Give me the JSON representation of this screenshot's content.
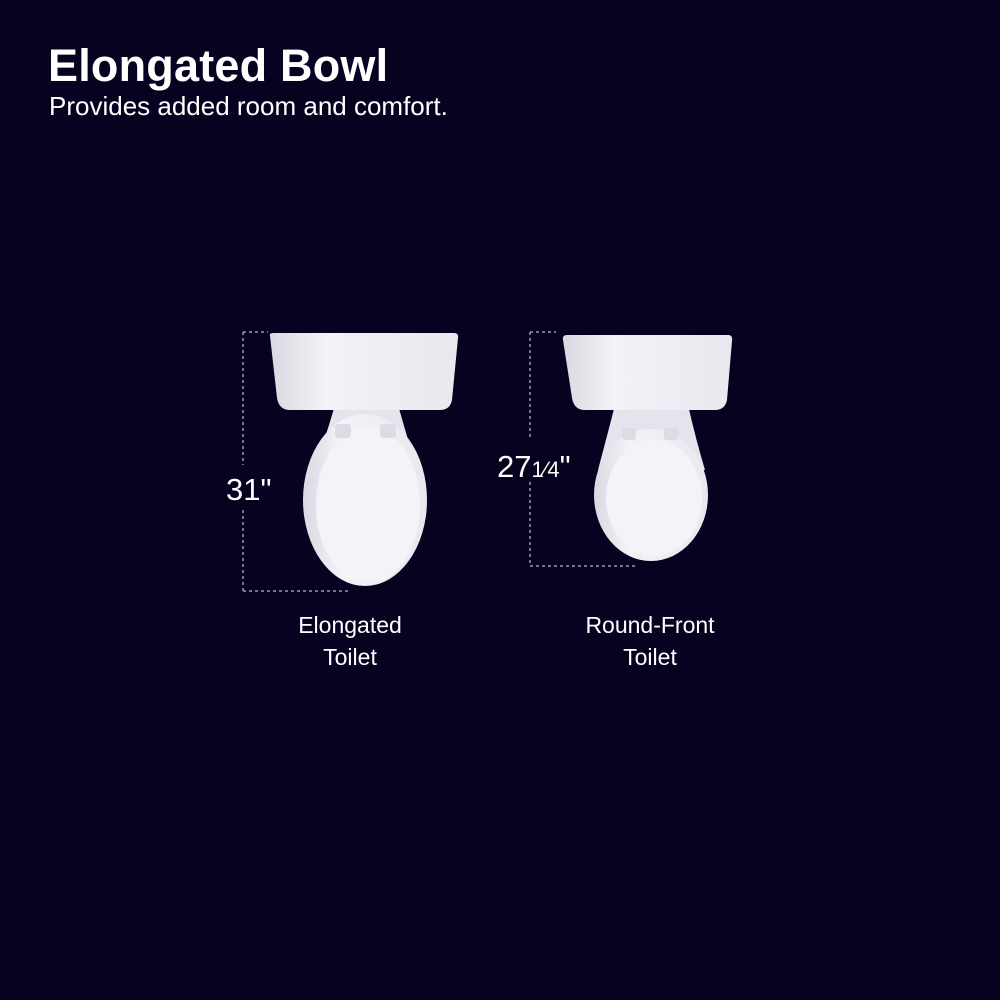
{
  "header": {
    "title": "Elongated Bowl",
    "subtitle": "Provides added room and comfort."
  },
  "toilets": [
    {
      "name_line1": "Elongated",
      "name_line2": "Toilet",
      "height_whole": "31",
      "height_fraction": "",
      "unit": "\""
    },
    {
      "name_line1": "Round-Front",
      "name_line2": "Toilet",
      "height_whole": "27",
      "height_fraction": "1⁄4",
      "unit": "\""
    }
  ],
  "colors": {
    "background": "#05031f",
    "porcelain": "#eeeef4",
    "dimension_line": "#9a9aa8"
  }
}
